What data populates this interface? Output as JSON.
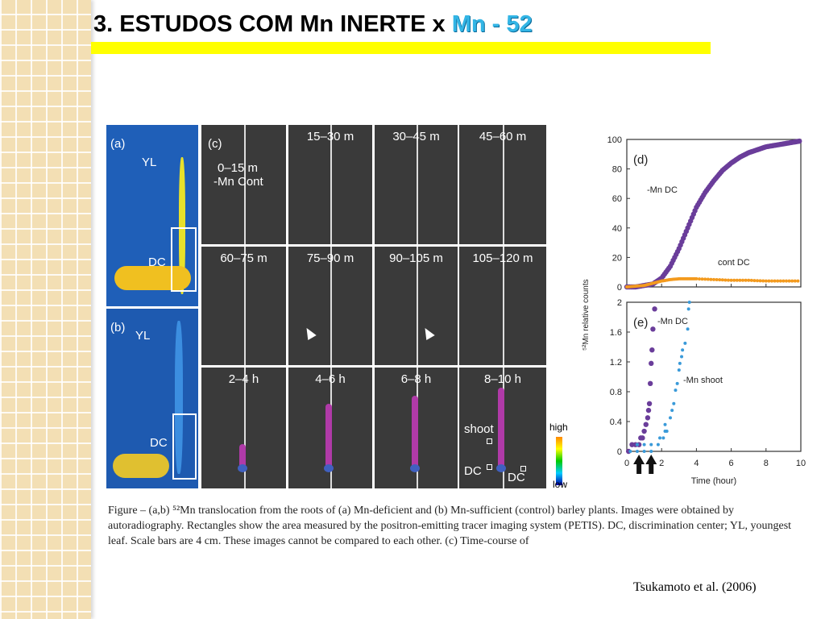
{
  "slide": {
    "title_prefix": "3. ESTUDOS COM Mn INERTE x ",
    "title_highlight": "Mn - 52",
    "accent_bar_color": "#ffff00",
    "highlight_color": "#33b5e5",
    "citation": "Tsukamoto et al. (2006)"
  },
  "figure": {
    "panel_a": {
      "label": "(a)",
      "yl": "YL",
      "dc": "DC"
    },
    "panel_b": {
      "label": "(b)",
      "yl": "YL",
      "dc": "DC"
    },
    "panel_c": {
      "label": "(c)",
      "first_cell": [
        "0–15 m",
        "-Mn  Cont"
      ],
      "cells": [
        "15–30 m",
        "30–45 m",
        "45–60 m",
        "60–75 m",
        "75–90 m",
        "90–105 m",
        "105–120 m",
        "2–4 h",
        "4–6 h",
        "6–8 h",
        "8–10 h"
      ],
      "shoot": "shoot",
      "dc1": "DC",
      "dc2": "DC",
      "scale_high": "high",
      "scale_low": "low"
    },
    "caption": "Figure – (a,b) ⁵²Mn translocation from the roots of (a) Mn-deficient and (b) Mn-sufficient (control) barley plants. Images were obtained by autoradiography. Rectangles show the area measured by the positron-emitting tracer imaging system (PETIS). DC, discrimination center; YL, youngest leaf. Scale bars are 4 cm. These images cannot be compared to each other. (c) Time-course of"
  },
  "chart_data": [
    {
      "type": "scatter",
      "panel_label": "(d)",
      "ylabel": "⁵²Mn relative counts",
      "xlim": [
        0,
        10
      ],
      "ylim": [
        0,
        100
      ],
      "yticks": [
        "0",
        "20",
        "40",
        "60",
        "80",
        "100"
      ],
      "series": [
        {
          "name": "-Mn DC",
          "color": "#6a3d9a",
          "x": [
            0,
            0.5,
            1,
            1.5,
            2,
            2.5,
            3,
            3.5,
            4,
            4.5,
            5,
            5.5,
            6,
            6.5,
            7,
            7.5,
            8,
            8.5,
            9,
            9.5,
            10
          ],
          "y": [
            0,
            0,
            1,
            2,
            6,
            14,
            26,
            40,
            54,
            64,
            72,
            79,
            84,
            88,
            91,
            93,
            95,
            96,
            97,
            98,
            99
          ]
        },
        {
          "name": "cont DC",
          "color": "#f39a1e",
          "x": [
            0,
            0.5,
            1,
            1.5,
            2,
            2.5,
            3,
            3.5,
            4,
            5,
            6,
            7,
            8,
            9,
            10
          ],
          "y": [
            0,
            0.5,
            1,
            2.5,
            4,
            5,
            5.5,
            5.5,
            5.5,
            5,
            4.5,
            4.5,
            4,
            4,
            4
          ]
        }
      ]
    },
    {
      "type": "scatter",
      "panel_label": "(e)",
      "xlabel": "Time (hour)",
      "xlim": [
        0,
        10
      ],
      "ylim": [
        0,
        2
      ],
      "xticks": [
        "0",
        "2",
        "4",
        "6",
        "8",
        "10"
      ],
      "yticks": [
        "0",
        "0.4",
        "0.8",
        "1.2",
        "1.6",
        "2"
      ],
      "arrows_at_hour": [
        0.7,
        1.4
      ],
      "series": [
        {
          "name": "-Mn DC",
          "color": "#6a3d9a",
          "x": [
            0.1,
            0.3,
            0.5,
            0.7,
            0.8,
            0.9,
            1.0,
            1.1,
            1.2,
            1.25,
            1.3,
            1.35,
            1.4,
            1.45,
            1.5,
            1.6
          ],
          "y": [
            0,
            0.09,
            0.09,
            0.09,
            0.18,
            0.18,
            0.27,
            0.36,
            0.45,
            0.55,
            0.64,
            0.91,
            1.18,
            1.36,
            1.64,
            1.91
          ]
        },
        {
          "name": "-Mn shoot",
          "color": "#3a9ad9",
          "x": [
            0.2,
            0.6,
            1.0,
            1.4,
            0.6,
            1.0,
            1.4,
            1.8,
            1.9,
            2.1,
            2.2,
            2.3,
            2.2,
            2.5,
            2.6,
            2.7,
            2.8,
            2.9,
            3.0,
            3.05,
            3.15,
            3.2,
            3.35,
            3.5,
            3.55,
            3.6
          ],
          "y": [
            0,
            0,
            0,
            0,
            0.09,
            0.09,
            0.09,
            0.09,
            0.18,
            0.18,
            0.27,
            0.27,
            0.36,
            0.45,
            0.55,
            0.64,
            0.82,
            0.91,
            1.09,
            1.18,
            1.27,
            1.36,
            1.45,
            1.64,
            1.91,
            2.0
          ]
        }
      ]
    }
  ]
}
